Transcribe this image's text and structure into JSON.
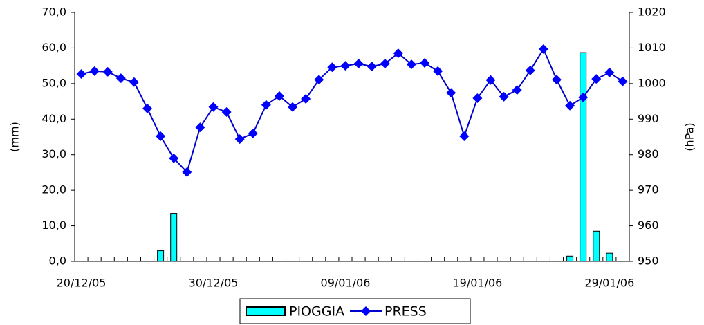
{
  "chart_data": {
    "type": "bar-line",
    "y_label": "(mm)",
    "y2_label": "(hPa)",
    "categories": [
      "20/12/05",
      null,
      null,
      null,
      null,
      null,
      null,
      null,
      null,
      null,
      "30/12/05",
      null,
      null,
      null,
      null,
      null,
      null,
      null,
      null,
      null,
      "09/01/06",
      null,
      null,
      null,
      null,
      null,
      null,
      null,
      null,
      null,
      "19/01/06",
      null,
      null,
      null,
      null,
      null,
      null,
      null,
      null,
      null,
      "29/01/06",
      null
    ],
    "series": [
      {
        "name": "PIOGGIA",
        "type": "bar",
        "color": "#00ffff",
        "values": [
          0,
          0,
          0,
          0,
          0,
          0,
          3.0,
          13.5,
          0,
          0,
          0,
          0,
          0,
          0,
          0,
          0,
          0,
          0,
          0,
          0,
          0,
          0,
          0,
          0,
          0,
          0,
          0,
          0,
          0,
          0,
          0,
          0,
          0,
          0,
          0,
          0,
          0,
          1.5,
          58.7,
          8.5,
          2.3,
          0
        ]
      },
      {
        "name": "PRESS",
        "type": "line",
        "axis": "y2",
        "color": "#0000ff",
        "values": [
          1002.7,
          1003.5,
          1003.3,
          1001.5,
          1000.4,
          993,
          985.2,
          979,
          975.1,
          987.7,
          993.4,
          992,
          984.4,
          986,
          994,
          996.5,
          993.4,
          995.7,
          1001.1,
          1004.6,
          1005,
          1005.6,
          1004.8,
          1005.6,
          1008.5,
          1005.4,
          1005.8,
          1003.5,
          997.4,
          985.2,
          995.9,
          1001,
          996.3,
          998.2,
          1003.7,
          1009.7,
          1001.1,
          993.8,
          996.1,
          1001.3,
          1003.1,
          1000.6
        ]
      }
    ],
    "ylim": [
      0,
      70
    ],
    "yticks": [
      {
        "value": 0,
        "label": "0,0"
      },
      {
        "value": 10,
        "label": "10,0"
      },
      {
        "value": 20,
        "label": "20,0"
      },
      {
        "value": 30,
        "label": "30,0"
      },
      {
        "value": 40,
        "label": "40,0"
      },
      {
        "value": 50,
        "label": "50,0"
      },
      {
        "value": 60,
        "label": "60,0"
      },
      {
        "value": 70,
        "label": "70,0"
      }
    ],
    "y2lim": [
      950,
      1020
    ],
    "y2ticks": [
      950,
      960,
      970,
      980,
      990,
      1000,
      1010,
      1020
    ],
    "legend": "bottom"
  }
}
